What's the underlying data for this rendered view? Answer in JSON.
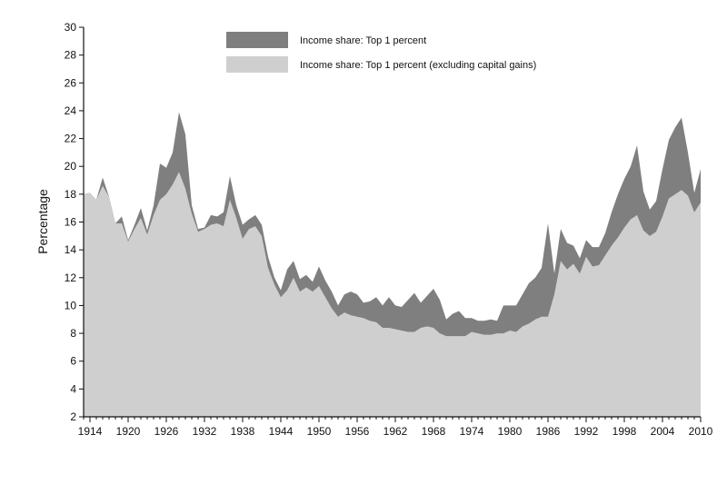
{
  "chart_data": {
    "type": "area",
    "title": "",
    "xlabel": "",
    "ylabel": "Percentage",
    "xlim": [
      1913,
      2010
    ],
    "ylim": [
      2,
      30
    ],
    "x_ticks": [
      1914,
      1920,
      1926,
      1932,
      1938,
      1944,
      1950,
      1956,
      1962,
      1968,
      1974,
      1980,
      1986,
      1992,
      1998,
      2004,
      2010
    ],
    "y_ticks": [
      2,
      4,
      6,
      8,
      10,
      12,
      14,
      16,
      18,
      20,
      22,
      24,
      26,
      28,
      30
    ],
    "legend_position": "top-center",
    "grid": false,
    "series": [
      {
        "name": "Income share: Top 1 percent",
        "color": "#7f7f7f",
        "points": [
          [
            1913,
            18.0
          ],
          [
            1914,
            18.1
          ],
          [
            1915,
            17.6
          ],
          [
            1916,
            19.2
          ],
          [
            1917,
            17.8
          ],
          [
            1918,
            15.9
          ],
          [
            1919,
            16.4
          ],
          [
            1920,
            14.7
          ],
          [
            1921,
            15.8
          ],
          [
            1922,
            17.0
          ],
          [
            1923,
            15.4
          ],
          [
            1924,
            17.2
          ],
          [
            1925,
            20.2
          ],
          [
            1926,
            19.9
          ],
          [
            1927,
            21.0
          ],
          [
            1928,
            23.9
          ],
          [
            1929,
            22.3
          ],
          [
            1930,
            17.2
          ],
          [
            1931,
            15.5
          ],
          [
            1932,
            15.6
          ],
          [
            1933,
            16.5
          ],
          [
            1934,
            16.4
          ],
          [
            1935,
            16.7
          ],
          [
            1936,
            19.3
          ],
          [
            1937,
            17.2
          ],
          [
            1938,
            15.8
          ],
          [
            1939,
            16.2
          ],
          [
            1940,
            16.5
          ],
          [
            1941,
            15.8
          ],
          [
            1942,
            13.5
          ],
          [
            1943,
            12.0
          ],
          [
            1944,
            11.1
          ],
          [
            1945,
            12.6
          ],
          [
            1946,
            13.2
          ],
          [
            1947,
            11.9
          ],
          [
            1948,
            12.2
          ],
          [
            1949,
            11.7
          ],
          [
            1950,
            12.8
          ],
          [
            1951,
            11.8
          ],
          [
            1952,
            11.0
          ],
          [
            1953,
            10.0
          ],
          [
            1954,
            10.8
          ],
          [
            1955,
            11.0
          ],
          [
            1956,
            10.8
          ],
          [
            1957,
            10.2
          ],
          [
            1958,
            10.3
          ],
          [
            1959,
            10.6
          ],
          [
            1960,
            10.0
          ],
          [
            1961,
            10.6
          ],
          [
            1962,
            10.0
          ],
          [
            1963,
            9.9
          ],
          [
            1964,
            10.4
          ],
          [
            1965,
            10.9
          ],
          [
            1966,
            10.2
          ],
          [
            1967,
            10.7
          ],
          [
            1968,
            11.2
          ],
          [
            1969,
            10.4
          ],
          [
            1970,
            9.0
          ],
          [
            1971,
            9.4
          ],
          [
            1972,
            9.6
          ],
          [
            1973,
            9.1
          ],
          [
            1974,
            9.1
          ],
          [
            1975,
            8.9
          ],
          [
            1976,
            8.9
          ],
          [
            1977,
            9.0
          ],
          [
            1978,
            8.9
          ],
          [
            1979,
            10.0
          ],
          [
            1980,
            10.0
          ],
          [
            1981,
            10.0
          ],
          [
            1982,
            10.8
          ],
          [
            1983,
            11.6
          ],
          [
            1984,
            12.0
          ],
          [
            1985,
            12.7
          ],
          [
            1986,
            15.9
          ],
          [
            1987,
            12.3
          ],
          [
            1988,
            15.5
          ],
          [
            1989,
            14.5
          ],
          [
            1990,
            14.3
          ],
          [
            1991,
            13.4
          ],
          [
            1992,
            14.7
          ],
          [
            1993,
            14.2
          ],
          [
            1994,
            14.2
          ],
          [
            1995,
            15.2
          ],
          [
            1996,
            16.7
          ],
          [
            1997,
            18.0
          ],
          [
            1998,
            19.1
          ],
          [
            1999,
            20.0
          ],
          [
            2000,
            21.5
          ],
          [
            2001,
            18.2
          ],
          [
            2002,
            16.9
          ],
          [
            2003,
            17.5
          ],
          [
            2004,
            19.8
          ],
          [
            2005,
            21.9
          ],
          [
            2006,
            22.8
          ],
          [
            2007,
            23.5
          ],
          [
            2008,
            21.0
          ],
          [
            2009,
            18.1
          ],
          [
            2010,
            19.8
          ]
        ]
      },
      {
        "name": "Income share: Top 1 percent (excluding capital gains)",
        "color": "#cfcfcf",
        "points": [
          [
            1913,
            18.0
          ],
          [
            1914,
            18.1
          ],
          [
            1915,
            17.6
          ],
          [
            1916,
            18.6
          ],
          [
            1917,
            17.8
          ],
          [
            1918,
            15.9
          ],
          [
            1919,
            15.9
          ],
          [
            1920,
            14.6
          ],
          [
            1921,
            15.5
          ],
          [
            1922,
            16.3
          ],
          [
            1923,
            15.1
          ],
          [
            1924,
            16.5
          ],
          [
            1925,
            17.6
          ],
          [
            1926,
            18.0
          ],
          [
            1927,
            18.7
          ],
          [
            1928,
            19.6
          ],
          [
            1929,
            18.4
          ],
          [
            1930,
            16.6
          ],
          [
            1931,
            15.3
          ],
          [
            1932,
            15.5
          ],
          [
            1933,
            15.8
          ],
          [
            1934,
            15.9
          ],
          [
            1935,
            15.7
          ],
          [
            1936,
            17.6
          ],
          [
            1937,
            16.3
          ],
          [
            1938,
            14.8
          ],
          [
            1939,
            15.5
          ],
          [
            1940,
            15.7
          ],
          [
            1941,
            15.0
          ],
          [
            1942,
            12.7
          ],
          [
            1943,
            11.5
          ],
          [
            1944,
            10.6
          ],
          [
            1945,
            11.1
          ],
          [
            1946,
            12.0
          ],
          [
            1947,
            11.0
          ],
          [
            1948,
            11.3
          ],
          [
            1949,
            11.0
          ],
          [
            1950,
            11.4
          ],
          [
            1951,
            10.6
          ],
          [
            1952,
            9.8
          ],
          [
            1953,
            9.2
          ],
          [
            1954,
            9.5
          ],
          [
            1955,
            9.3
          ],
          [
            1956,
            9.2
          ],
          [
            1957,
            9.1
          ],
          [
            1958,
            8.9
          ],
          [
            1959,
            8.8
          ],
          [
            1960,
            8.4
          ],
          [
            1961,
            8.4
          ],
          [
            1962,
            8.3
          ],
          [
            1963,
            8.2
          ],
          [
            1964,
            8.1
          ],
          [
            1965,
            8.1
          ],
          [
            1966,
            8.4
          ],
          [
            1967,
            8.5
          ],
          [
            1968,
            8.4
          ],
          [
            1969,
            8.0
          ],
          [
            1970,
            7.8
          ],
          [
            1971,
            7.8
          ],
          [
            1972,
            7.8
          ],
          [
            1973,
            7.8
          ],
          [
            1974,
            8.1
          ],
          [
            1975,
            8.0
          ],
          [
            1976,
            7.9
          ],
          [
            1977,
            7.9
          ],
          [
            1978,
            8.0
          ],
          [
            1979,
            8.0
          ],
          [
            1980,
            8.2
          ],
          [
            1981,
            8.1
          ],
          [
            1982,
            8.5
          ],
          [
            1983,
            8.7
          ],
          [
            1984,
            9.0
          ],
          [
            1985,
            9.2
          ],
          [
            1986,
            9.2
          ],
          [
            1987,
            10.8
          ],
          [
            1988,
            13.2
          ],
          [
            1989,
            12.6
          ],
          [
            1990,
            13.0
          ],
          [
            1991,
            12.3
          ],
          [
            1992,
            13.5
          ],
          [
            1993,
            12.8
          ],
          [
            1994,
            12.9
          ],
          [
            1995,
            13.6
          ],
          [
            1996,
            14.3
          ],
          [
            1997,
            14.9
          ],
          [
            1998,
            15.6
          ],
          [
            1999,
            16.2
          ],
          [
            2000,
            16.5
          ],
          [
            2001,
            15.4
          ],
          [
            2002,
            15.0
          ],
          [
            2003,
            15.3
          ],
          [
            2004,
            16.4
          ],
          [
            2005,
            17.7
          ],
          [
            2006,
            18.0
          ],
          [
            2007,
            18.3
          ],
          [
            2008,
            17.9
          ],
          [
            2009,
            16.7
          ],
          [
            2010,
            17.4
          ]
        ]
      }
    ]
  }
}
